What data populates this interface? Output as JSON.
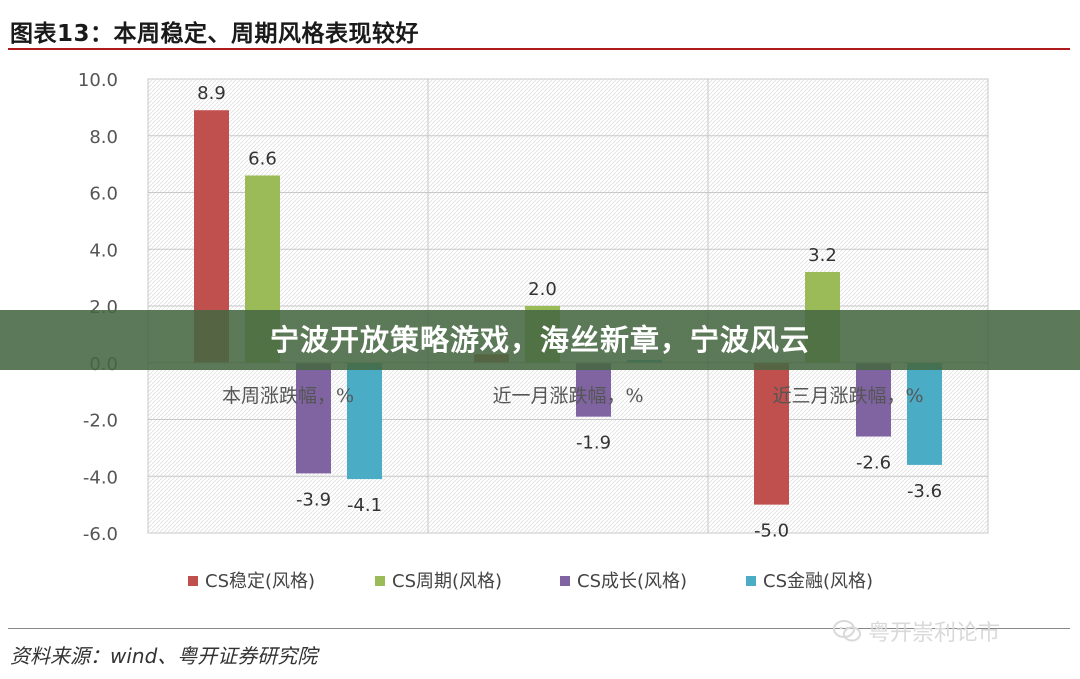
{
  "title": "图表13：本周稳定、周期风格表现较好",
  "banner_text": "宁波开放策略游戏，海丝新章，宁波风云",
  "watermark": "粤开崇利论市",
  "source": "资料来源：wind、粤开证券研究院",
  "colors": {
    "title_rule": "#b01a1a",
    "series": [
      "#c0504d",
      "#9bbb59",
      "#8064a2",
      "#4bacc6"
    ]
  },
  "chart_data": {
    "type": "bar",
    "categories": [
      "本周涨跌幅，%",
      "近一月涨跌幅，%",
      "近三月涨跌幅，%"
    ],
    "series": [
      {
        "name": "CS稳定(风格)",
        "values": [
          8.9,
          0.3,
          -5.0
        ]
      },
      {
        "name": "CS周期(风格)",
        "values": [
          6.6,
          2.0,
          3.2
        ]
      },
      {
        "name": "CS成长(风格)",
        "values": [
          -3.9,
          -1.9,
          -2.6
        ]
      },
      {
        "name": "CS金融(风格)",
        "values": [
          -4.1,
          0.1,
          -3.6
        ]
      }
    ],
    "data_labels": [
      [
        "8.9",
        "6.6",
        "-3.9",
        "-4.1"
      ],
      [
        "",
        "2.0",
        "-1.9",
        ""
      ],
      [
        "-5.0",
        "3.2",
        "-2.6",
        "-3.6"
      ]
    ],
    "ylim": [
      -6.0,
      10.0
    ],
    "yticks": [
      "10.0",
      "8.0",
      "6.0",
      "4.0",
      "2.0",
      "0.0",
      "-2.0",
      "-4.0",
      "-6.0"
    ],
    "grid": true,
    "legend": "bottom"
  }
}
